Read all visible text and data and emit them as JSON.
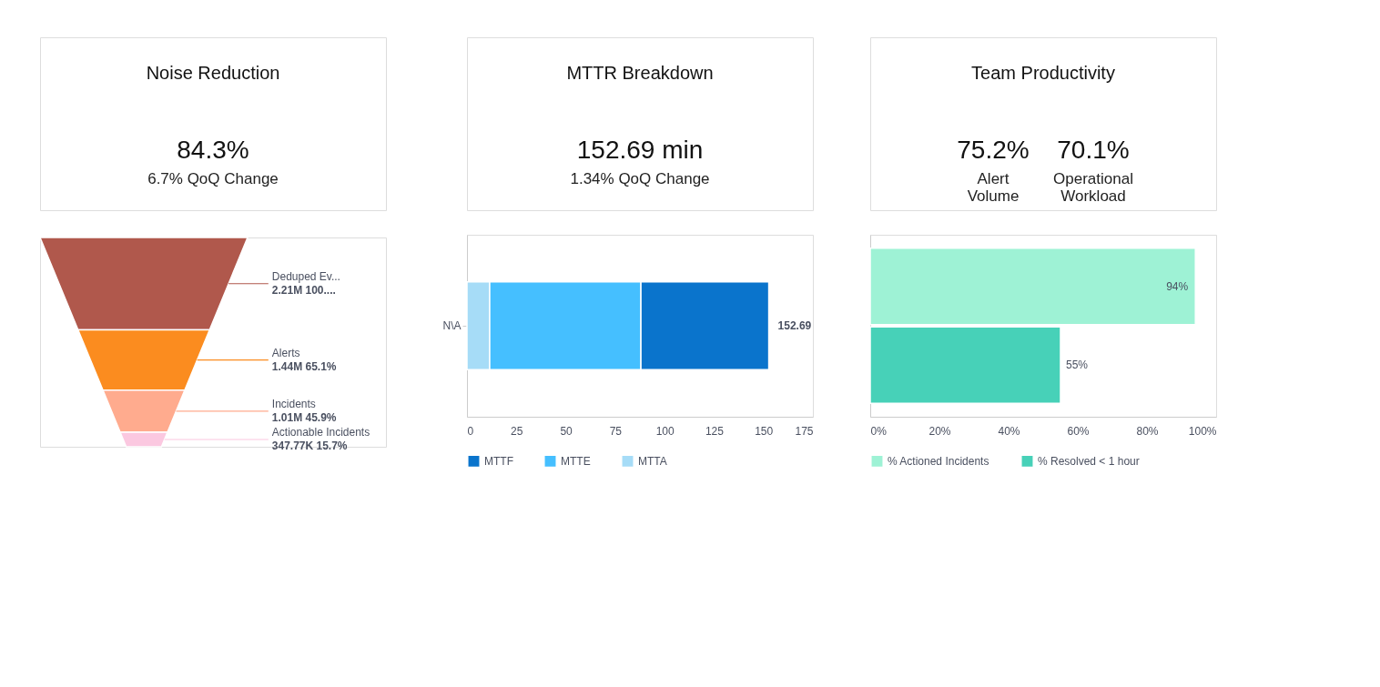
{
  "chart_data": [
    {
      "type": "other",
      "title": "Noise Reduction",
      "annotations": [
        "84.3%",
        "6.7% QoQ Change"
      ],
      "categories": [
        "Deduped Ev...",
        "Alerts",
        "Incidents",
        "Actionable Incidents"
      ],
      "values": [
        2210000,
        1440000,
        1010000,
        347770
      ],
      "value_labels": [
        "2.21M 100....",
        "1.44M 65.1%",
        "1.01M 45.9%",
        "347.77K 15.7%"
      ],
      "colors": [
        "#b0584c",
        "#fb8c1f",
        "#ffab8e",
        "#fbc8e0"
      ]
    },
    {
      "type": "bar",
      "title": "MTTR Breakdown",
      "annotations": [
        "152.69 min",
        "1.34% QoQ Change"
      ],
      "orientation": "horizontal",
      "stacked": true,
      "categories": [
        "N\\A"
      ],
      "series": [
        {
          "name": "MTTA",
          "color": "#a6dcf7",
          "values": [
            11.5
          ]
        },
        {
          "name": "MTTE",
          "color": "#45bfff",
          "values": [
            76.5
          ]
        },
        {
          "name": "MTTF",
          "color": "#0a74cc",
          "values": [
            64.69
          ]
        }
      ],
      "totals": [
        "152.69"
      ],
      "xlim": [
        0,
        175
      ],
      "xticks": [
        0,
        25,
        50,
        75,
        100,
        125,
        150,
        175
      ],
      "legend": "bottom"
    },
    {
      "type": "bar",
      "title": "Team Productivity",
      "annotations": [
        "75.2%",
        "Alert Volume",
        "70.1%",
        "Operational Workload"
      ],
      "orientation": "horizontal",
      "categories": [
        null
      ],
      "series": [
        {
          "name": "% Actioned Incidents",
          "color": "#9ef2d5",
          "values": [
            94
          ],
          "value_labels": [
            "94%"
          ]
        },
        {
          "name": "% Resolved < 1 hour",
          "color": "#47d1b8",
          "values": [
            55
          ],
          "value_labels": [
            "55%"
          ]
        }
      ],
      "xlim": [
        0,
        100
      ],
      "xticks": [
        {
          "value": 0,
          "label": "0%"
        },
        {
          "value": 20,
          "label": "20%"
        },
        {
          "value": 40,
          "label": "40%"
        },
        {
          "value": 60,
          "label": "60%"
        },
        {
          "value": 80,
          "label": "80%"
        },
        {
          "value": 100,
          "label": "100%"
        }
      ],
      "legend": "bottom",
      "tick_labels": "x"
    }
  ]
}
